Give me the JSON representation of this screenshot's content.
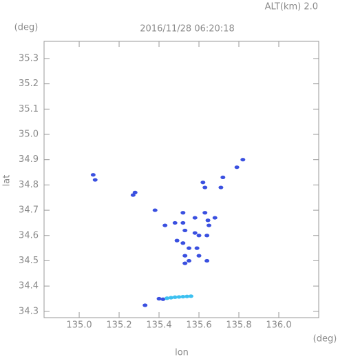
{
  "chart_data": {
    "type": "scatter",
    "title": "2016/11/28 06:20:18",
    "subtitle": "ALT(km) 2.0",
    "x_label": "lon",
    "y_label": "lat",
    "x_unit": "(deg)",
    "y_unit": "(deg)",
    "xlim": [
      134.824,
      136.2
    ],
    "ylim": [
      34.275,
      35.368
    ],
    "xticks": [
      {
        "value": 135.0,
        "label": "135.0"
      },
      135.2,
      135.4,
      135.6,
      135.8,
      {
        "value": 136.0,
        "label": "136.0"
      }
    ],
    "yticks": [
      34.3,
      34.4,
      34.5,
      34.6,
      34.7,
      34.8,
      34.9,
      {
        "value": 35.0,
        "label": "35.0"
      },
      35.1,
      35.2,
      35.3
    ],
    "series": [
      {
        "color": "#3a50e0",
        "x": [
          135.07,
          135.08,
          135.27,
          135.28,
          135.38,
          135.43,
          135.48,
          135.52,
          135.52,
          135.53,
          135.52,
          135.49,
          135.55,
          135.53,
          135.55,
          135.53,
          135.58,
          135.6,
          135.59,
          135.6,
          135.58,
          135.645,
          135.63,
          135.65,
          135.64,
          135.64,
          135.62,
          135.63,
          135.68,
          135.72,
          135.71,
          135.79,
          135.82,
          135.33,
          135.4,
          135.42
        ],
        "values": [
          34.84,
          34.82,
          34.76,
          34.77,
          34.7,
          34.64,
          34.65,
          34.69,
          34.65,
          34.62,
          34.57,
          34.58,
          34.55,
          34.52,
          34.5,
          34.49,
          34.61,
          34.6,
          34.55,
          34.52,
          34.67,
          34.66,
          34.69,
          34.64,
          34.6,
          34.5,
          34.81,
          34.79,
          34.67,
          34.83,
          34.79,
          34.87,
          34.9,
          34.324,
          34.35,
          34.348
        ]
      },
      {
        "color": "#3cc0f0",
        "x": [
          135.44,
          135.46,
          135.48,
          135.5,
          135.52,
          135.54,
          135.56
        ],
        "values": [
          34.352,
          34.354,
          34.356,
          34.357,
          34.358,
          34.359,
          34.36
        ]
      }
    ]
  }
}
